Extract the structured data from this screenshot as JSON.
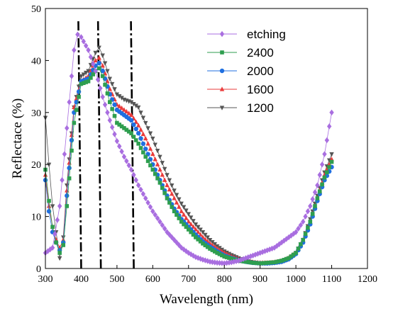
{
  "chart_data": {
    "type": "scatter",
    "xlabel": "Wavelength (nm)",
    "ylabel": "Reflectace (%)",
    "xlim": [
      300,
      1200
    ],
    "ylim": [
      0,
      50
    ],
    "xticks": [
      300,
      400,
      500,
      600,
      700,
      800,
      900,
      1000,
      1100,
      1200
    ],
    "yticks": [
      0,
      10,
      20,
      30,
      40,
      50
    ],
    "grid": false,
    "legend_position": "top-right",
    "vlines": [
      400,
      455,
      547
    ],
    "series": [
      {
        "name": "etching",
        "color": "#a96ee0",
        "marker": "diamond",
        "points": [
          [
            300,
            3
          ],
          [
            320,
            4
          ],
          [
            340,
            12
          ],
          [
            360,
            27
          ],
          [
            380,
            42
          ],
          [
            390,
            45
          ],
          [
            400,
            44.5
          ],
          [
            420,
            42
          ],
          [
            440,
            38
          ],
          [
            460,
            33
          ],
          [
            480,
            28.5
          ],
          [
            500,
            24.5
          ],
          [
            520,
            21.5
          ],
          [
            540,
            19
          ],
          [
            560,
            16
          ],
          [
            580,
            13.5
          ],
          [
            600,
            11
          ],
          [
            620,
            9
          ],
          [
            640,
            7
          ],
          [
            660,
            5.5
          ],
          [
            680,
            4
          ],
          [
            700,
            3
          ],
          [
            720,
            2.2
          ],
          [
            740,
            1.7
          ],
          [
            760,
            1.3
          ],
          [
            780,
            1.1
          ],
          [
            800,
            1
          ],
          [
            820,
            1.2
          ],
          [
            840,
            1.5
          ],
          [
            860,
            2
          ],
          [
            880,
            2.5
          ],
          [
            900,
            3
          ],
          [
            920,
            3.5
          ],
          [
            940,
            4
          ],
          [
            960,
            5
          ],
          [
            980,
            6
          ],
          [
            1000,
            7
          ],
          [
            1020,
            9
          ],
          [
            1040,
            12
          ],
          [
            1060,
            16
          ],
          [
            1080,
            22
          ],
          [
            1100,
            30
          ]
        ]
      },
      {
        "name": "2400",
        "color": "#2e9e4f",
        "marker": "square",
        "points": [
          [
            300,
            19
          ],
          [
            310,
            13
          ],
          [
            320,
            8
          ],
          [
            330,
            5
          ],
          [
            340,
            3
          ],
          [
            350,
            4.5
          ],
          [
            360,
            12
          ],
          [
            380,
            28
          ],
          [
            400,
            35.5
          ],
          [
            420,
            36
          ],
          [
            440,
            38
          ],
          [
            450,
            38.5
          ],
          [
            460,
            37
          ],
          [
            480,
            32
          ],
          [
            500,
            28
          ],
          [
            520,
            27
          ],
          [
            540,
            26
          ],
          [
            560,
            24
          ],
          [
            580,
            21.5
          ],
          [
            600,
            19
          ],
          [
            620,
            16.5
          ],
          [
            640,
            13.5
          ],
          [
            660,
            11
          ],
          [
            680,
            9
          ],
          [
            700,
            7.5
          ],
          [
            720,
            6
          ],
          [
            740,
            4.8
          ],
          [
            760,
            3.8
          ],
          [
            780,
            3
          ],
          [
            800,
            2.3
          ],
          [
            820,
            1.9
          ],
          [
            840,
            1.5
          ],
          [
            860,
            1.3
          ],
          [
            880,
            1.1
          ],
          [
            900,
            1
          ],
          [
            920,
            1.1
          ],
          [
            940,
            1.2
          ],
          [
            960,
            1.5
          ],
          [
            980,
            2
          ],
          [
            1000,
            3
          ],
          [
            1020,
            5.5
          ],
          [
            1040,
            9
          ],
          [
            1060,
            13.5
          ],
          [
            1080,
            17.5
          ],
          [
            1100,
            20.5
          ]
        ]
      },
      {
        "name": "2000",
        "color": "#1f6fe0",
        "marker": "circle",
        "points": [
          [
            300,
            17
          ],
          [
            310,
            11
          ],
          [
            320,
            7
          ],
          [
            330,
            5
          ],
          [
            340,
            3.5
          ],
          [
            350,
            5
          ],
          [
            360,
            14
          ],
          [
            380,
            30
          ],
          [
            400,
            36
          ],
          [
            420,
            36.5
          ],
          [
            440,
            39
          ],
          [
            450,
            39.5
          ],
          [
            460,
            38
          ],
          [
            480,
            33.5
          ],
          [
            500,
            30.5
          ],
          [
            520,
            29.5
          ],
          [
            540,
            28.5
          ],
          [
            560,
            26
          ],
          [
            580,
            23
          ],
          [
            600,
            20
          ],
          [
            620,
            17
          ],
          [
            640,
            14
          ],
          [
            660,
            11.5
          ],
          [
            680,
            9.5
          ],
          [
            700,
            8
          ],
          [
            720,
            6.5
          ],
          [
            740,
            5.2
          ],
          [
            760,
            4.2
          ],
          [
            780,
            3.3
          ],
          [
            800,
            2.5
          ],
          [
            820,
            2
          ],
          [
            840,
            1.6
          ],
          [
            860,
            1.3
          ],
          [
            880,
            1.1
          ],
          [
            900,
            1
          ],
          [
            920,
            1
          ],
          [
            940,
            1.1
          ],
          [
            960,
            1.3
          ],
          [
            980,
            1.8
          ],
          [
            1000,
            2.8
          ],
          [
            1020,
            5
          ],
          [
            1040,
            8.5
          ],
          [
            1060,
            13
          ],
          [
            1080,
            17
          ],
          [
            1100,
            19.5
          ]
        ]
      },
      {
        "name": "1600",
        "color": "#ea3b3b",
        "marker": "triangle",
        "points": [
          [
            300,
            18
          ],
          [
            310,
            12
          ],
          [
            320,
            8
          ],
          [
            330,
            5.5
          ],
          [
            340,
            4
          ],
          [
            350,
            5.5
          ],
          [
            360,
            15
          ],
          [
            380,
            31
          ],
          [
            400,
            36
          ],
          [
            420,
            37
          ],
          [
            440,
            40
          ],
          [
            450,
            40.5
          ],
          [
            460,
            39
          ],
          [
            480,
            34.5
          ],
          [
            500,
            31.5
          ],
          [
            520,
            30.5
          ],
          [
            540,
            29.5
          ],
          [
            560,
            27.5
          ],
          [
            580,
            25
          ],
          [
            600,
            22
          ],
          [
            620,
            19
          ],
          [
            640,
            16
          ],
          [
            660,
            13.5
          ],
          [
            680,
            11
          ],
          [
            700,
            9
          ],
          [
            720,
            7.5
          ],
          [
            740,
            6
          ],
          [
            760,
            4.8
          ],
          [
            780,
            3.8
          ],
          [
            800,
            3
          ],
          [
            820,
            2.3
          ],
          [
            840,
            1.8
          ],
          [
            860,
            1.4
          ],
          [
            880,
            1.2
          ],
          [
            900,
            1.1
          ],
          [
            920,
            1.1
          ],
          [
            940,
            1.2
          ],
          [
            960,
            1.4
          ],
          [
            980,
            2
          ],
          [
            1000,
            3
          ],
          [
            1020,
            5.5
          ],
          [
            1040,
            9
          ],
          [
            1060,
            13.5
          ],
          [
            1080,
            18
          ],
          [
            1100,
            21
          ]
        ]
      },
      {
        "name": "1200",
        "color": "#555555",
        "marker": "triangle-down",
        "points": [
          [
            300,
            29
          ],
          [
            310,
            20
          ],
          [
            320,
            12
          ],
          [
            330,
            7
          ],
          [
            340,
            2
          ],
          [
            350,
            6
          ],
          [
            360,
            16
          ],
          [
            380,
            31
          ],
          [
            400,
            37
          ],
          [
            420,
            38
          ],
          [
            440,
            41.5
          ],
          [
            450,
            42.5
          ],
          [
            460,
            41
          ],
          [
            480,
            36.5
          ],
          [
            500,
            33.5
          ],
          [
            520,
            32.5
          ],
          [
            540,
            32
          ],
          [
            560,
            31
          ],
          [
            580,
            28
          ],
          [
            600,
            25
          ],
          [
            620,
            21.5
          ],
          [
            640,
            18
          ],
          [
            660,
            15
          ],
          [
            680,
            12.5
          ],
          [
            700,
            10.5
          ],
          [
            720,
            8.5
          ],
          [
            740,
            7
          ],
          [
            760,
            5.5
          ],
          [
            780,
            4.3
          ],
          [
            800,
            3.3
          ],
          [
            820,
            2.6
          ],
          [
            840,
            2
          ],
          [
            860,
            1.5
          ],
          [
            880,
            1.2
          ],
          [
            900,
            1
          ],
          [
            920,
            1
          ],
          [
            940,
            1.1
          ],
          [
            960,
            1.3
          ],
          [
            980,
            1.8
          ],
          [
            1000,
            3
          ],
          [
            1020,
            5.5
          ],
          [
            1040,
            9.5
          ],
          [
            1060,
            14
          ],
          [
            1080,
            18.5
          ],
          [
            1100,
            22
          ]
        ]
      }
    ]
  }
}
